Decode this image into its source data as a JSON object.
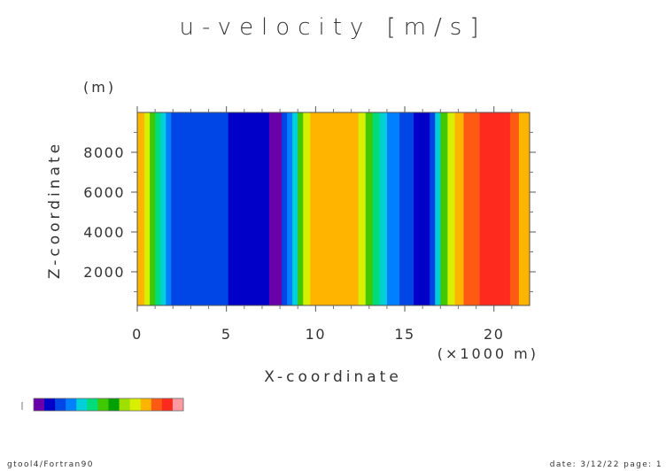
{
  "chart_data": {
    "type": "heatmap",
    "title": "u-velocity [m/s]",
    "xlabel": "X-coordinate",
    "ylabel": "Z-coordinate",
    "x_unit": "(×1000 m)",
    "y_unit": "(m)",
    "xlim": [
      0,
      22
    ],
    "ylim": [
      0,
      10000
    ],
    "x_ticks": [
      0,
      5,
      10,
      15,
      20
    ],
    "y_ticks": [
      2000,
      4000,
      6000,
      8000
    ],
    "x_tick_labels": [
      "0",
      "5",
      "10",
      "15",
      "20"
    ],
    "y_tick_labels": [
      "2000",
      "4000",
      "6000",
      "8000"
    ],
    "bands": [
      {
        "x0": 0.0,
        "x1": 0.4,
        "color": "#ffb400"
      },
      {
        "x0": 0.4,
        "x1": 0.7,
        "color": "#d8f000"
      },
      {
        "x0": 0.7,
        "x1": 1.0,
        "color": "#40c800"
      },
      {
        "x0": 1.0,
        "x1": 1.3,
        "color": "#00dc7a"
      },
      {
        "x0": 1.3,
        "x1": 1.6,
        "color": "#00d0d8"
      },
      {
        "x0": 1.6,
        "x1": 1.9,
        "color": "#0080ff"
      },
      {
        "x0": 1.9,
        "x1": 5.1,
        "color": "#0046e6"
      },
      {
        "x0": 5.1,
        "x1": 7.4,
        "color": "#0000c8"
      },
      {
        "x0": 7.4,
        "x1": 8.1,
        "color": "#6a00aa"
      },
      {
        "x0": 8.1,
        "x1": 8.4,
        "color": "#0046e6"
      },
      {
        "x0": 8.4,
        "x1": 8.7,
        "color": "#0080ff"
      },
      {
        "x0": 8.7,
        "x1": 9.0,
        "color": "#00d0d8"
      },
      {
        "x0": 9.0,
        "x1": 9.3,
        "color": "#40c800"
      },
      {
        "x0": 9.3,
        "x1": 9.7,
        "color": "#d8f000"
      },
      {
        "x0": 9.7,
        "x1": 12.4,
        "color": "#ffb400"
      },
      {
        "x0": 12.4,
        "x1": 12.8,
        "color": "#d8f000"
      },
      {
        "x0": 12.8,
        "x1": 13.2,
        "color": "#40c800"
      },
      {
        "x0": 13.2,
        "x1": 13.6,
        "color": "#00dc7a"
      },
      {
        "x0": 13.6,
        "x1": 14.0,
        "color": "#00d0d8"
      },
      {
        "x0": 14.0,
        "x1": 14.7,
        "color": "#0080ff"
      },
      {
        "x0": 14.7,
        "x1": 15.5,
        "color": "#0046e6"
      },
      {
        "x0": 15.5,
        "x1": 16.4,
        "color": "#0000c8"
      },
      {
        "x0": 16.4,
        "x1": 16.7,
        "color": "#0046e6"
      },
      {
        "x0": 16.7,
        "x1": 17.0,
        "color": "#00d0d8"
      },
      {
        "x0": 17.0,
        "x1": 17.4,
        "color": "#40c800"
      },
      {
        "x0": 17.4,
        "x1": 17.8,
        "color": "#d8f000"
      },
      {
        "x0": 17.8,
        "x1": 18.3,
        "color": "#ffb400"
      },
      {
        "x0": 18.3,
        "x1": 19.2,
        "color": "#ff5a14"
      },
      {
        "x0": 19.2,
        "x1": 20.9,
        "color": "#ff2a1e"
      },
      {
        "x0": 20.9,
        "x1": 21.4,
        "color": "#ff5a14"
      },
      {
        "x0": 21.4,
        "x1": 22.0,
        "color": "#ffb400"
      }
    ],
    "colorbar": [
      "#6a00aa",
      "#0000c8",
      "#0046e6",
      "#0080ff",
      "#00d0d8",
      "#00dc7a",
      "#40c800",
      "#00a000",
      "#a0e000",
      "#d8f000",
      "#ffb400",
      "#ff5a14",
      "#ff2a1e",
      "#ff9aa0"
    ],
    "grid": false
  },
  "footer": {
    "left": "gtool4/Fortran90",
    "right": "date: 3/12/22 page: 1"
  }
}
